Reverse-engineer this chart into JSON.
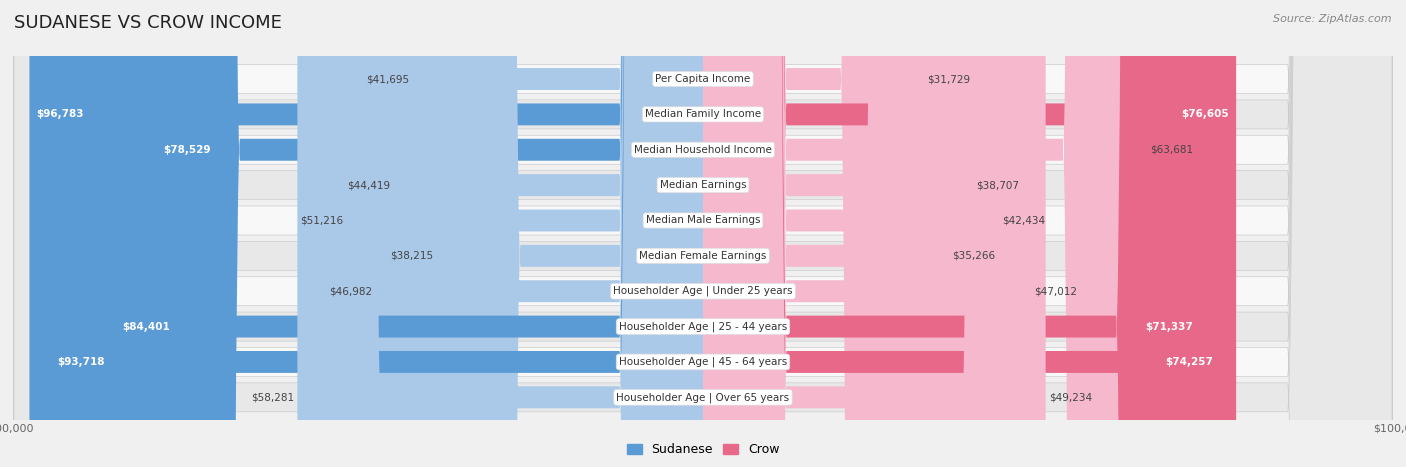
{
  "title": "SUDANESE VS CROW INCOME",
  "source": "Source: ZipAtlas.com",
  "max_value": 100000,
  "categories": [
    "Per Capita Income",
    "Median Family Income",
    "Median Household Income",
    "Median Earnings",
    "Median Male Earnings",
    "Median Female Earnings",
    "Householder Age | Under 25 years",
    "Householder Age | 25 - 44 years",
    "Householder Age | 45 - 64 years",
    "Householder Age | Over 65 years"
  ],
  "sudanese_values": [
    41695,
    96783,
    78529,
    44419,
    51216,
    38215,
    46982,
    84401,
    93718,
    58281
  ],
  "crow_values": [
    31729,
    76605,
    63681,
    38707,
    42434,
    35266,
    47012,
    71337,
    74257,
    49234
  ],
  "sudanese_labels": [
    "$41,695",
    "$96,783",
    "$78,529",
    "$44,419",
    "$51,216",
    "$38,215",
    "$46,982",
    "$84,401",
    "$93,718",
    "$58,281"
  ],
  "crow_labels": [
    "$31,729",
    "$76,605",
    "$63,681",
    "$38,707",
    "$42,434",
    "$35,266",
    "$47,012",
    "$71,337",
    "$74,257",
    "$49,234"
  ],
  "color_sudanese_light": "#aac8e8",
  "color_sudanese_dark": "#5b9bd5",
  "color_crow_light": "#f5b8cc",
  "color_crow_dark": "#e8688a",
  "bg_color": "#f0f0f0",
  "row_bg_odd": "#f8f8f8",
  "row_bg_even": "#e8e8e8",
  "label_bg": "#ffffff",
  "title_fontsize": 13,
  "label_fontsize": 7.5,
  "value_fontsize": 7.5,
  "legend_fontsize": 9,
  "axis_fontsize": 8,
  "dark_threshold": 70000
}
